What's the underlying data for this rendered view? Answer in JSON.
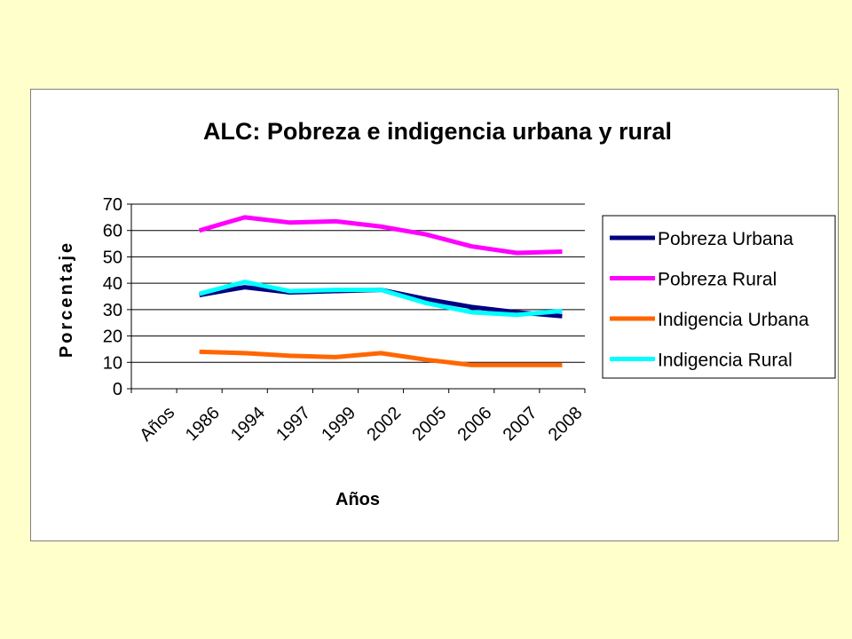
{
  "chart_data": {
    "type": "line",
    "title": "ALC: Pobreza e indigencia urbana y rural",
    "xlabel": "Años",
    "ylabel": "Porcentaje",
    "categories": [
      "Años",
      "1986",
      "1994",
      "1997",
      "1999",
      "2002",
      "2005",
      "2006",
      "2007",
      "2008"
    ],
    "ylim": [
      0,
      70
    ],
    "yticks": [
      0,
      10,
      20,
      30,
      40,
      50,
      60,
      70
    ],
    "grid": true,
    "legend_position": "right",
    "series": [
      {
        "name": "Pobreza Urbana",
        "color": "#000080",
        "values": [
          null,
          35.5,
          38.5,
          36.5,
          37,
          37.5,
          34,
          31,
          29,
          27.5
        ]
      },
      {
        "name": "Pobreza Rural",
        "color": "#FF00FF",
        "values": [
          null,
          60,
          65,
          63,
          63.5,
          61.5,
          58.5,
          54,
          51.5,
          52
        ]
      },
      {
        "name": "Indigencia Urbana",
        "color": "#FF6600",
        "values": [
          null,
          14,
          13.5,
          12.5,
          12,
          13.5,
          11,
          9,
          9,
          9
        ]
      },
      {
        "name": "Indigencia Rural",
        "color": "#00FFFF",
        "values": [
          null,
          36,
          40.5,
          37,
          37.5,
          37.5,
          32.5,
          29,
          28,
          29.5
        ]
      }
    ]
  }
}
